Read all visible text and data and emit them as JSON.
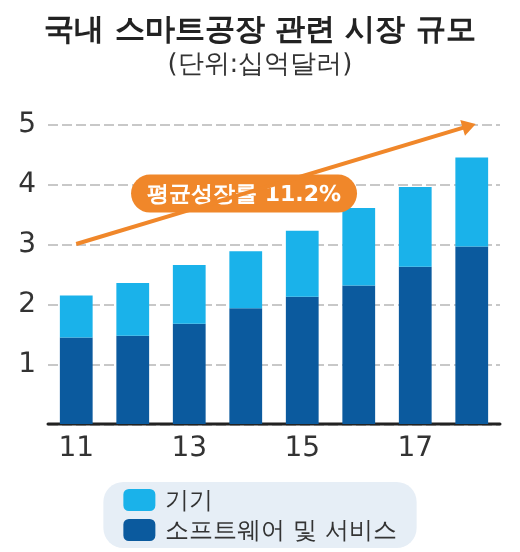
{
  "chart_data": {
    "type": "bar",
    "title": "국내 스마트공장 관련 시장 규모",
    "subtitle": "(단위:십억달러)",
    "categories": [
      "11",
      null,
      "13",
      null,
      "15",
      null,
      "17",
      null
    ],
    "stacked": true,
    "series": [
      {
        "name": "소프트웨어 및 서비스",
        "color": "#0b5a9e",
        "values": [
          1.44,
          1.47,
          1.67,
          1.93,
          2.12,
          2.31,
          2.62,
          2.96
        ]
      },
      {
        "name": "기기",
        "color": "#1ab2ea",
        "values": [
          0.7,
          0.88,
          0.98,
          0.95,
          1.1,
          1.29,
          1.33,
          1.48
        ]
      }
    ],
    "ylim": [
      0,
      5
    ],
    "yticks": [
      1,
      2,
      3,
      4,
      5
    ],
    "grid": "y",
    "legend": "bottom",
    "annotations": [
      "평균성장률 11.2%"
    ]
  }
}
